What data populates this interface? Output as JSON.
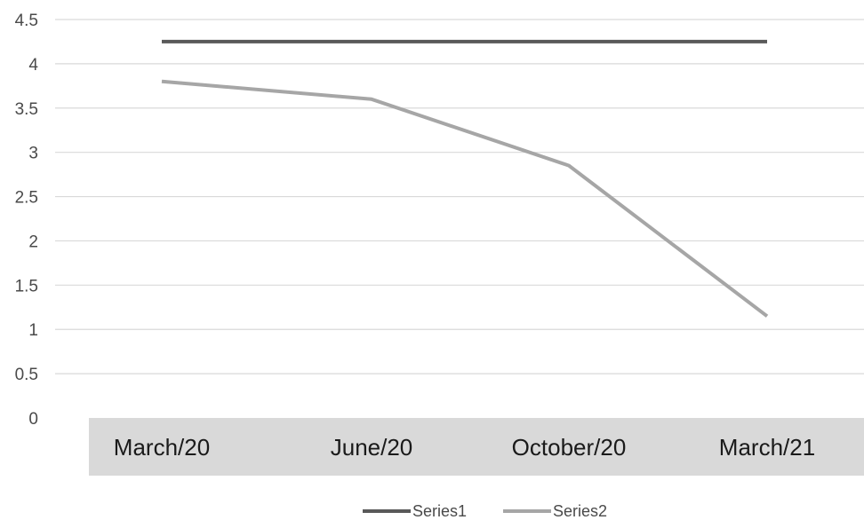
{
  "chart_data": {
    "type": "line",
    "categories": [
      "March/20",
      "June/20",
      "October/20",
      "March/21"
    ],
    "series": [
      {
        "name": "Series1",
        "values": [
          4.25,
          4.25,
          4.25,
          4.25
        ],
        "color": "#595959"
      },
      {
        "name": "Series2",
        "values": [
          3.8,
          3.6,
          2.85,
          1.15
        ],
        "color": "#a6a6a6"
      }
    ],
    "yticks": [
      "4.5",
      "4",
      "3.5",
      "3",
      "2.5",
      "2",
      "1.5",
      "1",
      "0.5",
      "0"
    ],
    "ylim": [
      0,
      4.5
    ],
    "grid": true,
    "legend_position": "bottom",
    "category_band_color": "#d9d9d9",
    "gridline_color": "#d9d9d9"
  }
}
